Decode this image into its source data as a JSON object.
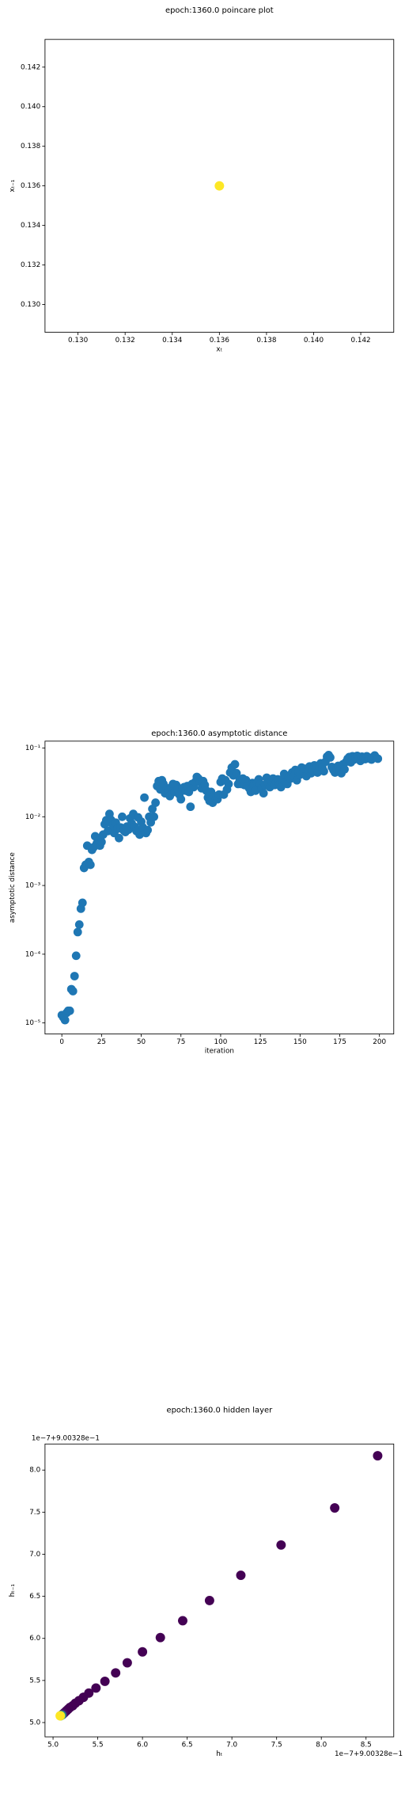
{
  "chart_data": [
    {
      "type": "scatter",
      "title": "epoch:1360.0 poincare plot",
      "xlabel": "xₜ",
      "ylabel": "xₜ₋₁",
      "x": [
        0.136
      ],
      "values": [
        0.136
      ],
      "colors": [
        "#fde725"
      ],
      "xlim": [
        0.1286,
        0.1434
      ],
      "ylim": [
        0.1286,
        0.1434
      ],
      "xticks": [
        {
          "value": 0.13,
          "label": "0.130"
        },
        {
          "value": 0.132,
          "label": "0.132"
        },
        {
          "value": 0.134,
          "label": "0.134"
        },
        {
          "value": 0.136,
          "label": "0.136"
        },
        {
          "value": 0.138,
          "label": "0.138"
        },
        {
          "value": 0.14,
          "label": "0.140"
        },
        {
          "value": 0.142,
          "label": "0.142"
        }
      ],
      "yticks": [
        {
          "value": 0.13,
          "label": "0.130"
        },
        {
          "value": 0.132,
          "label": "0.132"
        },
        {
          "value": 0.134,
          "label": "0.134"
        },
        {
          "value": 0.136,
          "label": "0.136"
        },
        {
          "value": 0.138,
          "label": "0.138"
        },
        {
          "value": 0.14,
          "label": "0.140"
        },
        {
          "value": 0.142,
          "label": "0.142"
        }
      ]
    },
    {
      "type": "scatter",
      "title": "epoch:1360.0 asymptotic distance",
      "xlabel": "iteration",
      "ylabel": "asymptotic distance",
      "ylog": true,
      "color": "#1f77b4",
      "x": [
        0,
        1,
        2,
        3,
        4,
        5,
        6,
        7,
        8,
        9,
        10,
        11,
        12,
        13,
        14,
        15,
        16,
        17,
        18,
        19,
        20,
        21,
        22,
        23,
        24,
        25,
        26,
        27,
        28,
        29,
        30,
        31,
        32,
        33,
        34,
        35,
        36,
        37,
        38,
        39,
        40,
        41,
        42,
        43,
        44,
        45,
        46,
        47,
        48,
        49,
        50,
        51,
        52,
        53,
        54,
        55,
        56,
        57,
        58,
        59,
        60,
        61,
        62,
        63,
        64,
        65,
        66,
        67,
        68,
        69,
        70,
        71,
        72,
        73,
        74,
        75,
        76,
        77,
        78,
        79,
        80,
        81,
        82,
        83,
        84,
        85,
        86,
        87,
        88,
        89,
        90,
        91,
        92,
        93,
        94,
        95,
        96,
        97,
        98,
        99,
        100,
        101,
        102,
        103,
        104,
        105,
        106,
        107,
        108,
        109,
        110,
        111,
        112,
        113,
        114,
        115,
        116,
        117,
        118,
        119,
        120,
        121,
        122,
        123,
        124,
        125,
        126,
        127,
        128,
        129,
        130,
        131,
        132,
        133,
        134,
        135,
        136,
        137,
        138,
        139,
        140,
        141,
        142,
        143,
        144,
        145,
        146,
        147,
        148,
        149,
        150,
        151,
        152,
        153,
        154,
        155,
        156,
        157,
        158,
        159,
        160,
        161,
        162,
        163,
        164,
        165,
        166,
        167,
        168,
        169,
        170,
        171,
        172,
        173,
        174,
        175,
        176,
        177,
        178,
        179,
        180,
        181,
        182,
        183,
        184,
        185,
        186,
        187,
        188,
        189,
        190,
        191,
        192,
        193,
        194,
        195,
        196,
        197,
        198,
        199
      ],
      "values": [
        1.3e-05,
        1.2e-05,
        1.1e-05,
        1.4e-05,
        1.5e-05,
        1.5e-05,
        3.1e-05,
        2.9e-05,
        4.8e-05,
        9.5e-05,
        0.00021,
        0.00027,
        0.00046,
        0.00056,
        0.0018,
        0.002,
        0.0038,
        0.0022,
        0.002,
        0.0033,
        0.0036,
        0.0052,
        0.0041,
        0.0045,
        0.0038,
        0.0043,
        0.0055,
        0.0078,
        0.0089,
        0.0062,
        0.011,
        0.009,
        0.0075,
        0.0058,
        0.0082,
        0.0067,
        0.0049,
        0.007,
        0.01,
        0.0063,
        0.006,
        0.0072,
        0.0065,
        0.0095,
        0.008,
        0.011,
        0.0071,
        0.0062,
        0.0098,
        0.0055,
        0.0085,
        0.007,
        0.019,
        0.0058,
        0.0064,
        0.01,
        0.0083,
        0.013,
        0.01,
        0.016,
        0.028,
        0.033,
        0.025,
        0.034,
        0.03,
        0.022,
        0.026,
        0.024,
        0.02,
        0.027,
        0.03,
        0.023,
        0.029,
        0.025,
        0.021,
        0.018,
        0.026,
        0.027,
        0.024,
        0.028,
        0.023,
        0.014,
        0.03,
        0.027,
        0.032,
        0.038,
        0.036,
        0.032,
        0.026,
        0.033,
        0.029,
        0.024,
        0.019,
        0.017,
        0.023,
        0.016,
        0.02,
        0.018,
        0.018,
        0.021,
        0.032,
        0.036,
        0.021,
        0.034,
        0.025,
        0.03,
        0.044,
        0.052,
        0.04,
        0.058,
        0.043,
        0.03,
        0.034,
        0.03,
        0.036,
        0.029,
        0.034,
        0.028,
        0.026,
        0.023,
        0.031,
        0.029,
        0.024,
        0.032,
        0.035,
        0.03,
        0.026,
        0.022,
        0.029,
        0.037,
        0.031,
        0.027,
        0.033,
        0.036,
        0.029,
        0.032,
        0.035,
        0.03,
        0.027,
        0.035,
        0.042,
        0.032,
        0.03,
        0.038,
        0.036,
        0.044,
        0.039,
        0.048,
        0.034,
        0.046,
        0.041,
        0.052,
        0.045,
        0.05,
        0.039,
        0.049,
        0.054,
        0.043,
        0.047,
        0.056,
        0.05,
        0.044,
        0.055,
        0.06,
        0.052,
        0.046,
        0.063,
        0.075,
        0.079,
        0.073,
        0.053,
        0.048,
        0.044,
        0.05,
        0.055,
        0.047,
        0.043,
        0.058,
        0.049,
        0.063,
        0.07,
        0.074,
        0.062,
        0.076,
        0.068,
        0.072,
        0.077,
        0.07,
        0.065,
        0.075,
        0.071,
        0.069,
        0.076,
        0.073,
        0.07,
        0.068,
        0.074,
        0.078,
        0.072,
        0.07
      ],
      "xlim": [
        -10.6,
        209
      ],
      "ylim": [
        6.9e-06,
        0.126
      ],
      "xticks": [
        0,
        25,
        50,
        75,
        100,
        125,
        150,
        175,
        200
      ],
      "yticks": [
        {
          "value": 1e-05,
          "label": "10⁻⁵"
        },
        {
          "value": 0.0001,
          "label": "10⁻⁴"
        },
        {
          "value": 0.001,
          "label": "10⁻³"
        },
        {
          "value": 0.01,
          "label": "10⁻²"
        },
        {
          "value": 0.1,
          "label": "10⁻¹"
        }
      ]
    },
    {
      "type": "scatter",
      "title": "epoch:1360.0 hidden layer",
      "xlabel": "hₜ",
      "ylabel": "hₜ₋₁",
      "x_offset_text": "1e−7+9.00328e−1",
      "y_offset_text": "1e−7+9.00328e−1",
      "x": [
        8.63,
        8.15,
        7.55,
        7.1,
        6.75,
        6.45,
        6.2,
        6.0,
        5.83,
        5.7,
        5.58,
        5.48,
        5.4,
        5.34,
        5.29,
        5.25,
        5.22,
        5.19,
        5.17,
        5.15,
        5.13,
        5.12,
        5.11,
        5.1,
        5.09,
        5.085,
        5.08
      ],
      "values": [
        8.17,
        7.55,
        7.11,
        6.75,
        6.45,
        6.21,
        6.01,
        5.84,
        5.71,
        5.59,
        5.49,
        5.41,
        5.35,
        5.3,
        5.26,
        5.23,
        5.2,
        5.18,
        5.16,
        5.14,
        5.12,
        5.11,
        5.1,
        5.09,
        5.085,
        5.08,
        5.08
      ],
      "colors": [
        "#440154",
        "#440154",
        "#440154",
        "#440154",
        "#440154",
        "#440154",
        "#440154",
        "#440154",
        "#440154",
        "#440154",
        "#440154",
        "#440154",
        "#440154",
        "#440154",
        "#440154",
        "#440154",
        "#440154",
        "#440154",
        "#440154",
        "#440154",
        "#440154",
        "#46085c",
        "#471063",
        "#3b528b",
        "#21918c",
        "#5ec962",
        "#fde725"
      ],
      "xlim": [
        4.91,
        8.81
      ],
      "ylim": [
        4.83,
        8.31
      ],
      "xticks": [
        {
          "value": 5,
          "label": "5.0"
        },
        {
          "value": 5.5,
          "label": "5.5"
        },
        {
          "value": 6,
          "label": "6.0"
        },
        {
          "value": 6.5,
          "label": "6.5"
        },
        {
          "value": 7,
          "label": "7.0"
        },
        {
          "value": 7.5,
          "label": "7.5"
        },
        {
          "value": 8,
          "label": "8.0"
        },
        {
          "value": 8.5,
          "label": "8.5"
        }
      ],
      "yticks": [
        {
          "value": 5,
          "label": "5.0"
        },
        {
          "value": 5.5,
          "label": "5.5"
        },
        {
          "value": 6,
          "label": "6.0"
        },
        {
          "value": 6.5,
          "label": "6.5"
        },
        {
          "value": 7,
          "label": "7.0"
        },
        {
          "value": 7.5,
          "label": "7.5"
        },
        {
          "value": 8,
          "label": "8.0"
        }
      ]
    }
  ]
}
